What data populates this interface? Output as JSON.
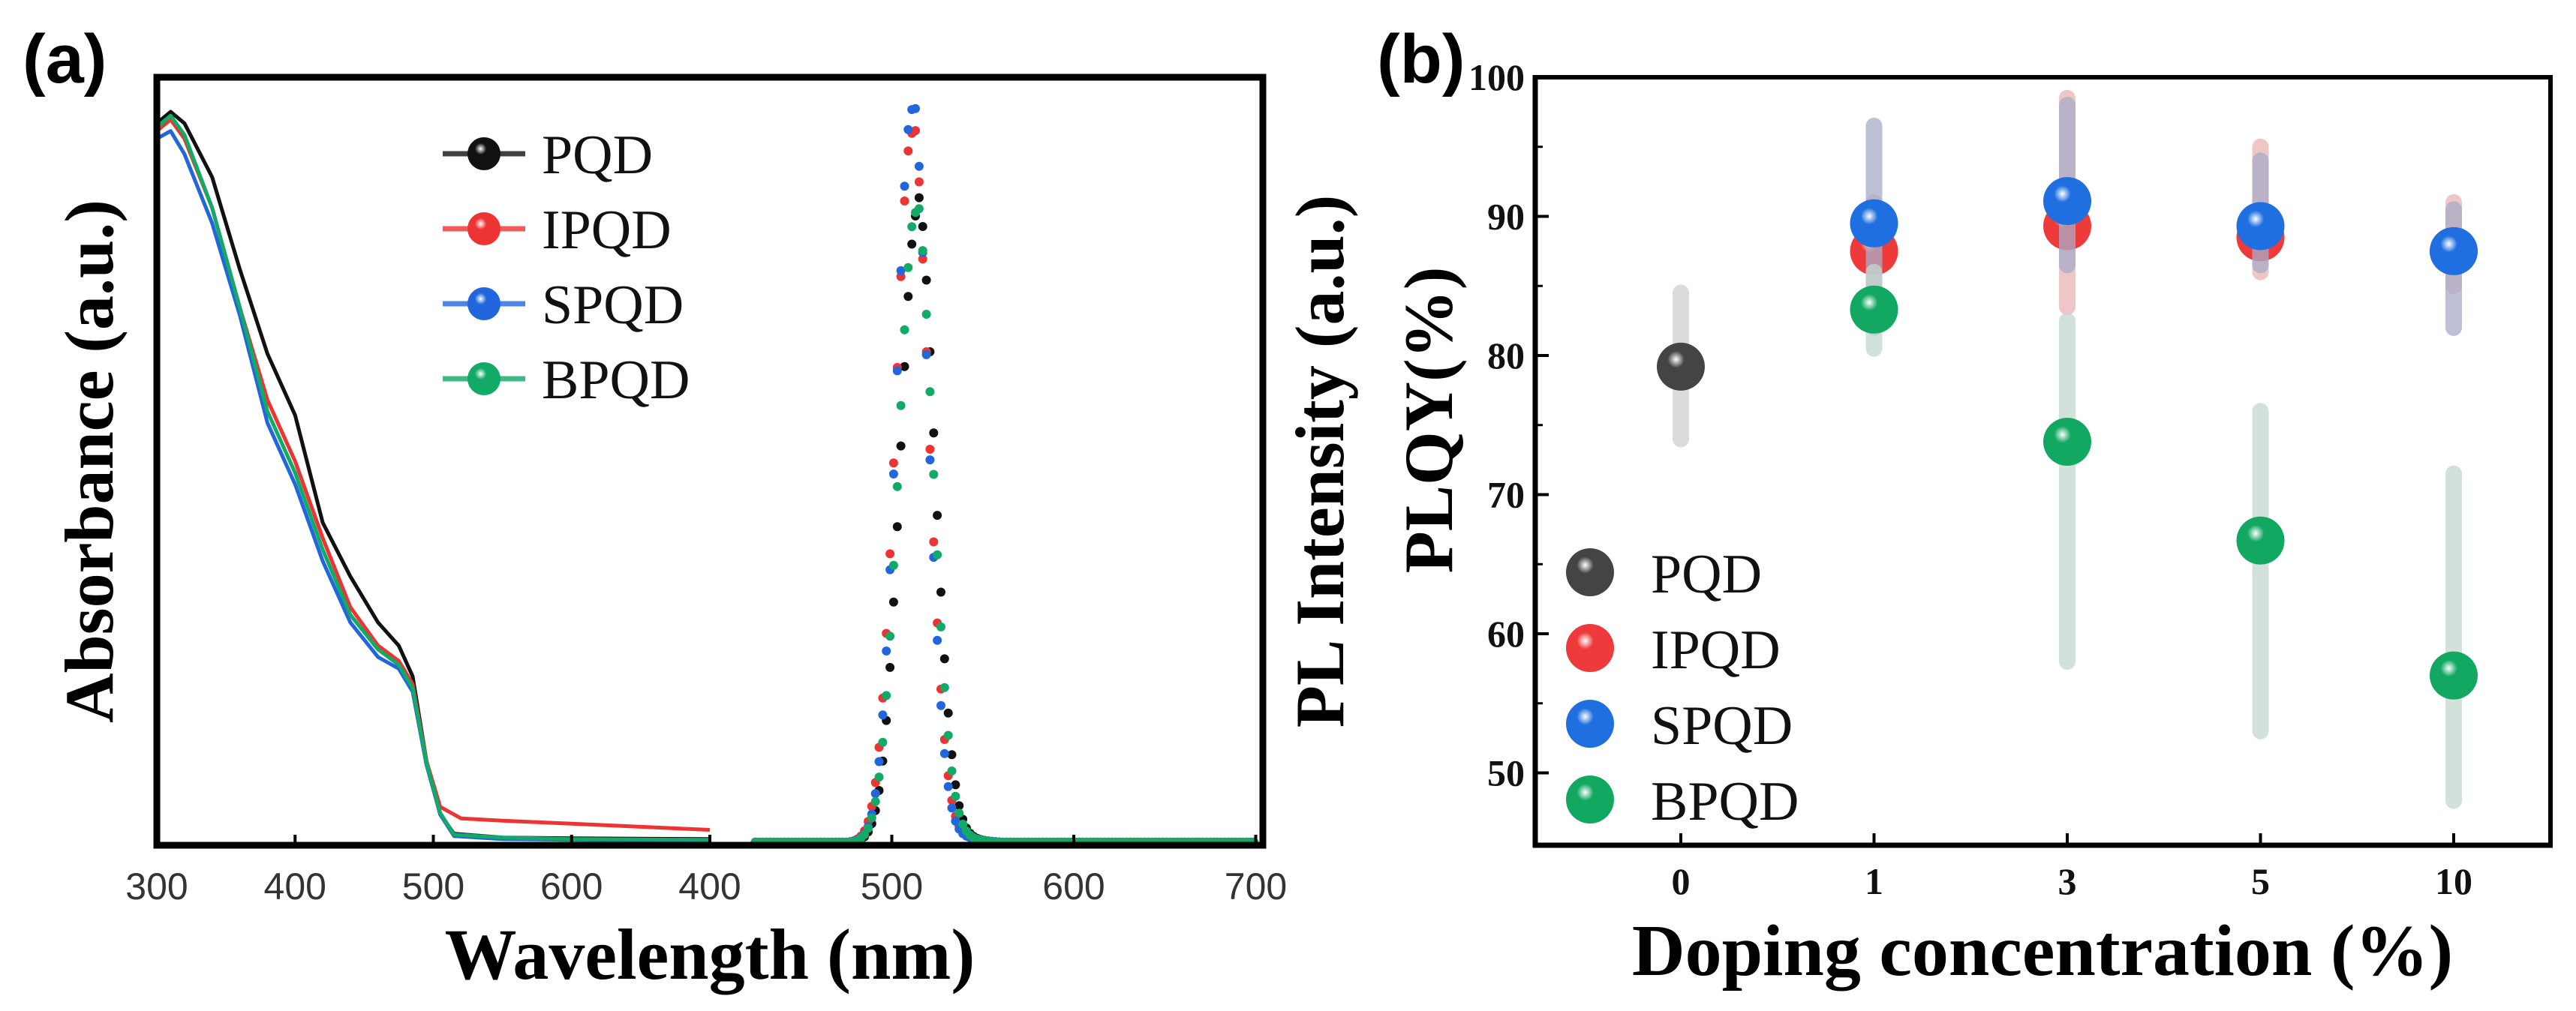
{
  "chart_data": [
    {
      "panel": "(a)",
      "type": "line",
      "xlabel": "Wavelength (nm)",
      "ylabel_left": "Absorbance (a.u.)",
      "ylabel_right": "PL Intensity (a.u.)",
      "x_tick_labels": [
        "300",
        "400",
        "500",
        "600",
        "400",
        "500",
        "600",
        "700"
      ],
      "absorbance_xlim": [
        300,
        700
      ],
      "pl_xlim": [
        400,
        700
      ],
      "ylim": [
        0,
        1
      ],
      "legend": [
        "PQD",
        "IPQD",
        "SPQD",
        "BPQD"
      ],
      "legend_position": "top-center",
      "colors": {
        "PQD": "#111111",
        "IPQD": "#ee3333",
        "SPQD": "#2266dd",
        "BPQD": "#11aa66"
      },
      "absorbance": [
        {
          "name": "PQD",
          "x": [
            300,
            310,
            320,
            340,
            360,
            380,
            400,
            420,
            440,
            460,
            475,
            485,
            495,
            505,
            515,
            550,
            600,
            700
          ],
          "y": [
            0.94,
            0.955,
            0.94,
            0.87,
            0.75,
            0.64,
            0.56,
            0.42,
            0.35,
            0.29,
            0.26,
            0.22,
            0.11,
            0.04,
            0.015,
            0.01,
            0.009,
            0.008
          ]
        },
        {
          "name": "IPQD",
          "x": [
            300,
            310,
            320,
            340,
            360,
            380,
            400,
            420,
            440,
            460,
            475,
            485,
            495,
            505,
            515,
            520,
            550,
            600,
            700
          ],
          "y": [
            0.93,
            0.945,
            0.92,
            0.83,
            0.7,
            0.58,
            0.5,
            0.4,
            0.31,
            0.26,
            0.24,
            0.21,
            0.11,
            0.05,
            0.04,
            0.035,
            0.032,
            0.028,
            0.02
          ]
        },
        {
          "name": "SPQD",
          "x": [
            300,
            310,
            320,
            340,
            360,
            380,
            400,
            420,
            440,
            460,
            475,
            485,
            495,
            505,
            515,
            550,
            600,
            700
          ],
          "y": [
            0.92,
            0.93,
            0.9,
            0.81,
            0.69,
            0.55,
            0.47,
            0.37,
            0.29,
            0.245,
            0.23,
            0.2,
            0.105,
            0.04,
            0.012,
            0.008,
            0.007,
            0.006
          ]
        },
        {
          "name": "BPQD",
          "x": [
            300,
            310,
            320,
            340,
            360,
            380,
            400,
            420,
            440,
            460,
            475,
            485,
            495,
            505,
            515,
            550,
            600,
            700
          ],
          "y": [
            0.935,
            0.95,
            0.925,
            0.83,
            0.7,
            0.565,
            0.485,
            0.385,
            0.3,
            0.255,
            0.235,
            0.205,
            0.108,
            0.042,
            0.014,
            0.01,
            0.008,
            0.007
          ]
        }
      ],
      "pl": [
        {
          "name": "PQD",
          "center_nm": 514,
          "fwhm_nm": 22,
          "peak": 0.8
        },
        {
          "name": "IPQD",
          "center_nm": 511,
          "fwhm_nm": 21,
          "peak": 0.9
        },
        {
          "name": "SPQD",
          "center_nm": 511,
          "fwhm_nm": 20,
          "peak": 0.93
        },
        {
          "name": "BPQD",
          "center_nm": 513,
          "fwhm_nm": 22,
          "peak": 0.8
        }
      ]
    },
    {
      "panel": "(b)",
      "type": "scatter",
      "xlabel": "Doping concentration (%)",
      "ylabel": "PLQY(%)",
      "categories": [
        "0",
        "1",
        "3",
        "5",
        "10"
      ],
      "ylim": [
        44.7,
        100
      ],
      "y_ticks": [
        50,
        60,
        70,
        80,
        90,
        100
      ],
      "legend_position": "bottom-left",
      "series": [
        {
          "name": "PQD",
          "color": "#444444",
          "err_color": "#cfcfcf",
          "points": [
            {
              "cat": 0,
              "y": 79.2,
              "lo": 74,
              "hi": 84.5
            }
          ]
        },
        {
          "name": "IPQD",
          "color": "#ee3a3a",
          "err_color": "#e9b4b4",
          "points": [
            {
              "cat": 1,
              "y": 87.5,
              "lo": 85,
              "hi": 91
            },
            {
              "cat": 2,
              "y": 89.3,
              "lo": 83.5,
              "hi": 98.5
            },
            {
              "cat": 3,
              "y": 88.5,
              "lo": 86,
              "hi": 95
            },
            {
              "cat": 4,
              "y": 87.5,
              "lo": 85,
              "hi": 91
            }
          ]
        },
        {
          "name": "SPQD",
          "color": "#1f6fe0",
          "err_color": "#a9adc8",
          "points": [
            {
              "cat": 1,
              "y": 89.5,
              "lo": 82,
              "hi": 96.5
            },
            {
              "cat": 2,
              "y": 91.1,
              "lo": 86.5,
              "hi": 98
            },
            {
              "cat": 3,
              "y": 89.3,
              "lo": 86.5,
              "hi": 94
            },
            {
              "cat": 4,
              "y": 87.5,
              "lo": 82,
              "hi": 90.5
            }
          ]
        },
        {
          "name": "BPQD",
          "color": "#12a862",
          "err_color": "#c5d8d0",
          "points": [
            {
              "cat": 1,
              "y": 83.3,
              "lo": 80.5,
              "hi": 86
            },
            {
              "cat": 2,
              "y": 73.8,
              "lo": 58,
              "hi": 82.5
            },
            {
              "cat": 3,
              "y": 66.7,
              "lo": 53,
              "hi": 76
            },
            {
              "cat": 4,
              "y": 57,
              "lo": 48,
              "hi": 71.5
            }
          ]
        }
      ]
    }
  ]
}
